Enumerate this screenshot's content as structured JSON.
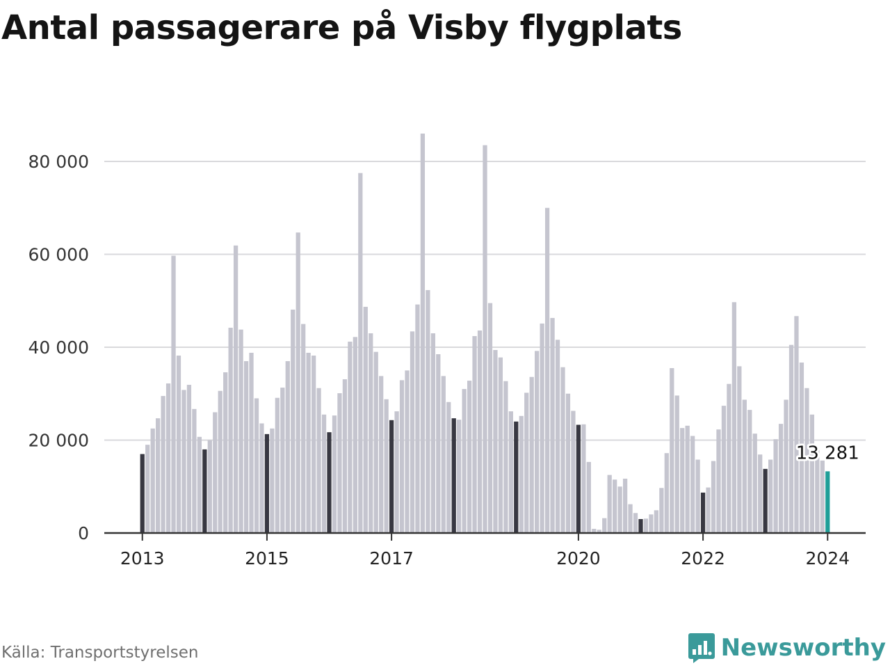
{
  "chart_data": {
    "type": "bar",
    "title": "Antal passagerare på Visby flygplats",
    "xlabel": "",
    "ylabel": "",
    "ylim": [
      0,
      88000
    ],
    "yticks": [
      0,
      20000,
      40000,
      60000,
      80000
    ],
    "ytick_labels": [
      "0",
      "20 000",
      "40 000",
      "60 000",
      "80 000"
    ],
    "xticks": [
      2013,
      2015,
      2017,
      2020,
      2022,
      2024
    ],
    "grid": true,
    "legend": "none",
    "start": "2013-01",
    "colors": {
      "bar": "#c5c5cf",
      "january": "#383842",
      "latest": "#1f9e98",
      "grid": "#d9d9dc",
      "axis": "#333333"
    },
    "values": [
      17000,
      19000,
      22500,
      24700,
      29500,
      32200,
      59700,
      38200,
      30800,
      31900,
      26700,
      20700,
      18000,
      20000,
      26000,
      30600,
      34600,
      44200,
      61900,
      43800,
      37000,
      38800,
      29000,
      23600,
      21300,
      22500,
      29100,
      31300,
      37000,
      48100,
      64700,
      45000,
      38800,
      38200,
      31200,
      25500,
      21700,
      25300,
      30100,
      33100,
      41200,
      42200,
      77500,
      48700,
      43000,
      39000,
      33800,
      28800,
      24300,
      26200,
      32900,
      35000,
      43400,
      49200,
      86000,
      52300,
      43000,
      38500,
      33800,
      28200,
      24700,
      24400,
      31000,
      32800,
      42400,
      43600,
      83500,
      49500,
      39400,
      37800,
      32700,
      26200,
      24000,
      25200,
      30200,
      33600,
      39200,
      45100,
      70000,
      46300,
      41600,
      35700,
      30000,
      26300,
      23300,
      23400,
      15300,
      900,
      700,
      3200,
      12500,
      11500,
      10000,
      11700,
      6200,
      4300,
      3000,
      3100,
      4000,
      4900,
      9700,
      17200,
      35500,
      29600,
      22600,
      23100,
      20900,
      15800,
      8700,
      9800,
      15500,
      22300,
      27400,
      32100,
      49700,
      35900,
      28700,
      26500,
      21400,
      16900,
      13800,
      15800,
      20200,
      23500,
      28700,
      40500,
      46700,
      36700,
      31200,
      25500,
      17900,
      15600,
      13281
    ],
    "annotation": {
      "label": "13 281",
      "value": 13281,
      "date": "2024-01"
    }
  },
  "source": "Källa: Transportstyrelsen",
  "brand": {
    "name": "Newsworthy",
    "icon": "chart-bubble-icon",
    "color": "#3a9a9a"
  }
}
